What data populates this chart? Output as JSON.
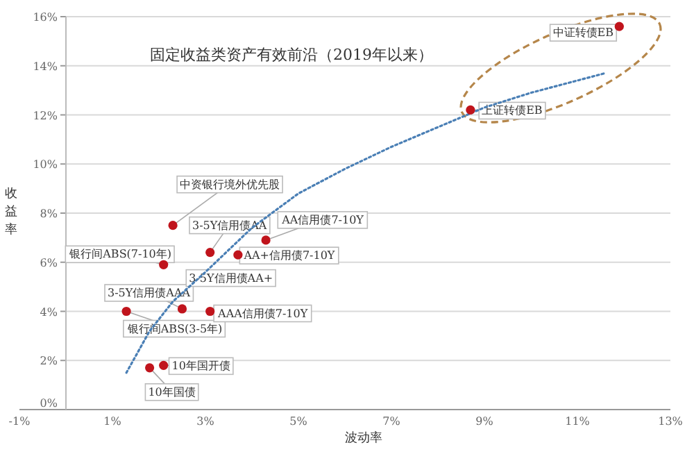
{
  "chart_data": {
    "type": "scatter",
    "title": "固定收益类资产有效前沿（2019年以来）",
    "xlabel": "波动率",
    "ylabel": "收益率",
    "xlim": [
      -1,
      13
    ],
    "xticks": [
      {
        "value": -1,
        "label": "-1%"
      },
      {
        "value": 1,
        "label": "1%"
      },
      {
        "value": 3,
        "label": "3%"
      },
      {
        "value": 5,
        "label": "5%"
      },
      {
        "value": 7,
        "label": "7%"
      },
      {
        "value": 9,
        "label": "9%"
      },
      {
        "value": 11,
        "label": "11%"
      },
      {
        "value": 13,
        "label": "13%"
      }
    ],
    "ylim": [
      0,
      16
    ],
    "yticks": [
      {
        "value": 0,
        "label": "0%"
      },
      {
        "value": 2,
        "label": "2%"
      },
      {
        "value": 4,
        "label": "4%"
      },
      {
        "value": 6,
        "label": "6%"
      },
      {
        "value": 8,
        "label": "8%"
      },
      {
        "value": 10,
        "label": "10%"
      },
      {
        "value": 12,
        "label": "12%"
      },
      {
        "value": 14,
        "label": "14%"
      },
      {
        "value": 16,
        "label": "16%"
      }
    ],
    "grid": "y",
    "series": [
      {
        "type": "scatter",
        "color": "#c0141c",
        "marker": "circle",
        "x": [
          11.9,
          8.7,
          2.3,
          3.1,
          4.3,
          3.7,
          2.1,
          2.5,
          1.3,
          3.1,
          2.1,
          1.8
        ],
        "values": [
          15.6,
          12.2,
          7.5,
          6.4,
          6.9,
          6.3,
          5.9,
          4.1,
          4.0,
          4.0,
          1.8,
          1.7
        ]
      },
      {
        "type": "line",
        "color": "#4a7fb5",
        "line_style": "dotted",
        "marker": "none",
        "x": [
          1.3,
          1.8,
          2.3,
          3.0,
          4.0,
          5.0,
          6.0,
          7.0,
          8.0,
          9.0,
          10.0,
          11.6
        ],
        "values": [
          1.5,
          3.2,
          4.4,
          5.6,
          7.4,
          8.8,
          9.8,
          10.7,
          11.5,
          12.3,
          12.9,
          13.7
        ]
      }
    ],
    "annotations": [
      {
        "text": "中证转债EB",
        "x": 11.9,
        "y": 15.6
      },
      {
        "text": "上证转债EB",
        "x": 8.7,
        "y": 12.2
      },
      {
        "text": "中资银行境外优先股",
        "x": 2.3,
        "y": 7.5
      },
      {
        "text": "3-5Y信用债AA",
        "x": 3.1,
        "y": 6.4
      },
      {
        "text": "AA信用债7-10Y",
        "x": 4.3,
        "y": 6.9
      },
      {
        "text": "AA+信用债7-10Y",
        "x": 3.7,
        "y": 6.3
      },
      {
        "text": "银行间ABS(7-10年)",
        "x": 2.1,
        "y": 5.9
      },
      {
        "text": "3-5Y信用债AAA",
        "x": 2.5,
        "y": 4.1
      },
      {
        "text": "银行间ABS(3-5年)",
        "x": 1.3,
        "y": 4.0
      },
      {
        "text": "AAA信用债7-10Y",
        "x": 3.1,
        "y": 4.0
      },
      {
        "text": "10年国开债",
        "x": 2.1,
        "y": 1.8
      },
      {
        "text": "10年国债",
        "x": 1.8,
        "y": 1.7
      },
      {
        "text": "3-5Y信用债AA+",
        "x": 3.1,
        "y": 6.4
      }
    ]
  }
}
